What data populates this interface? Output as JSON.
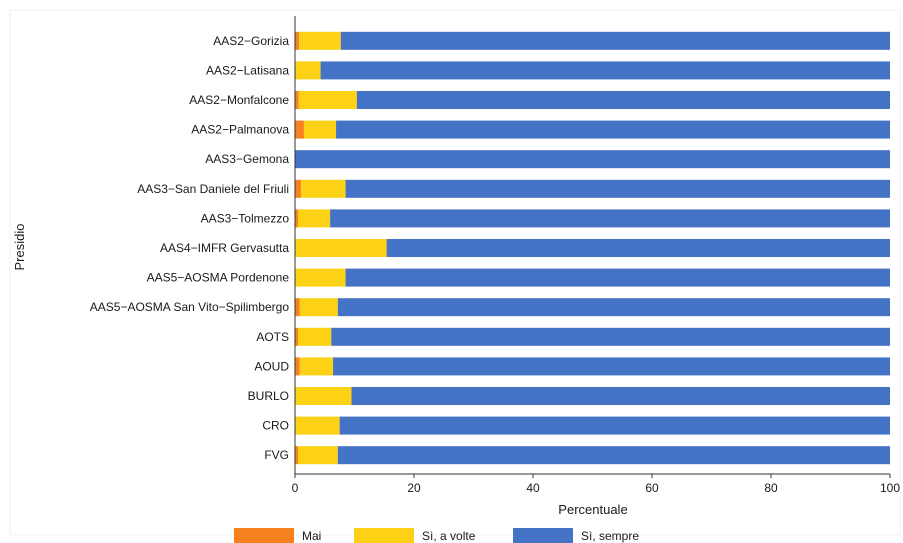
{
  "chart_data": {
    "type": "bar",
    "orientation": "horizontal",
    "stacked": true,
    "xlabel": "Percentuale",
    "ylabel": "Presidio",
    "xlim": [
      0,
      100
    ],
    "xticks": [
      0,
      20,
      40,
      60,
      80,
      100
    ],
    "legend_position": "bottom",
    "grid": false,
    "categories": [
      "AAS2−Gorizia",
      "AAS2−Latisana",
      "AAS2−Monfalcone",
      "AAS2−Palmanova",
      "AAS3−Gemona",
      "AAS3−San Daniele del Friuli",
      "AAS3−Tolmezzo",
      "AAS4−IMFR Gervasutta",
      "AAS5−AOSMA Pordenone",
      "AAS5−AOSMA San Vito−Spilimbergo",
      "AOTS",
      "AOUD",
      "BURLO",
      "CRO",
      "FVG"
    ],
    "series": [
      {
        "name": "Mai",
        "color": "#F5821F",
        "values": [
          0.7,
          0,
          0.6,
          1.5,
          0,
          1.0,
          0.5,
          0,
          0,
          0.8,
          0.5,
          0.8,
          0,
          0,
          0.5
        ]
      },
      {
        "name": "Sì, a volte",
        "color": "#FCD116",
        "values": [
          7.0,
          4.3,
          9.8,
          5.4,
          0,
          7.5,
          5.4,
          15.4,
          8.5,
          6.4,
          5.6,
          5.6,
          9.5,
          7.5,
          6.7
        ]
      },
      {
        "name": "Sì, sempre",
        "color": "#4472C4",
        "values": [
          92.3,
          95.7,
          89.6,
          93.1,
          100,
          91.5,
          94.1,
          84.6,
          91.5,
          92.8,
          93.9,
          93.6,
          90.5,
          92.5,
          92.8
        ]
      }
    ]
  }
}
